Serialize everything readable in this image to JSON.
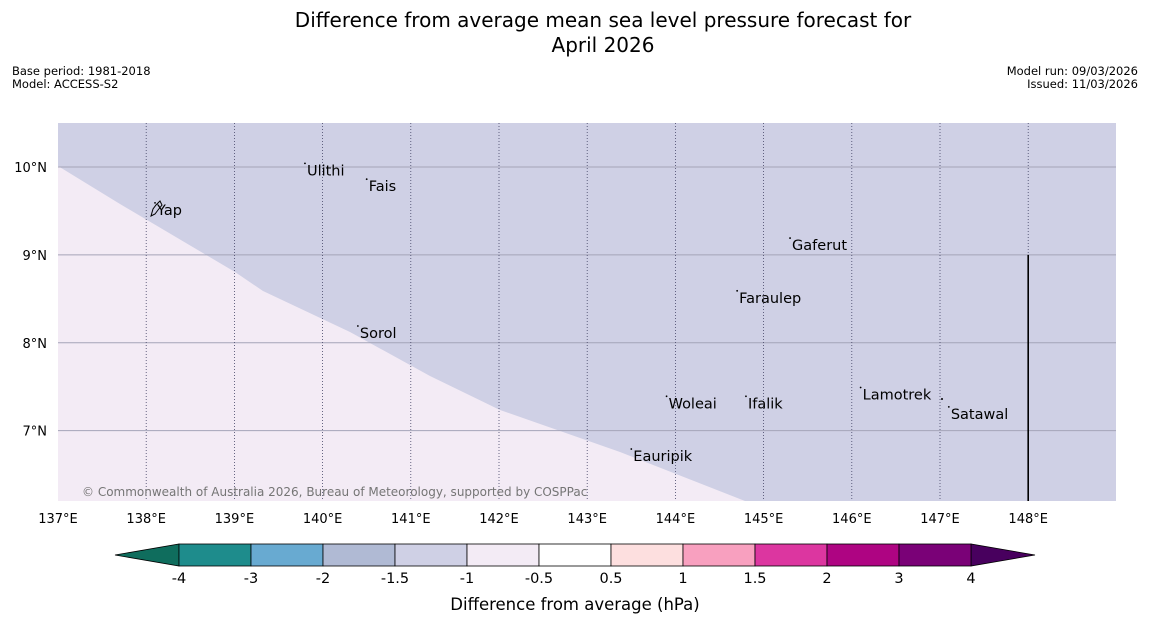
{
  "header": {
    "title_line1": "Difference from average mean sea level pressure forecast for",
    "title_line2": "April 2026",
    "base_period": "Base period: 1981-2018",
    "model": "Model: ACCESS-S2",
    "model_run": "Model run: 09/03/2026",
    "issued": "Issued: 11/03/2026"
  },
  "map": {
    "lon_range": [
      137,
      149
    ],
    "lat_range": [
      6.2,
      10.5
    ],
    "lon_ticks": [
      "137°E",
      "138°E",
      "139°E",
      "140°E",
      "141°E",
      "142°E",
      "143°E",
      "144°E",
      "145°E",
      "146°E",
      "147°E",
      "148°E"
    ],
    "lat_ticks": [
      "7°N",
      "8°N",
      "9°N",
      "10°N"
    ],
    "copyright": "© Commonwealth of Australia 2026, Bureau of Meteorology, supported by COSPPac",
    "colors": {
      "region_minus1_to_minus15": "#cfd0e5",
      "region_minus05_to_minus1": "#f3ebf5"
    },
    "places": [
      {
        "name": "Ulithi",
        "lon": 139.8,
        "lat": 9.95
      },
      {
        "name": "Fais",
        "lon": 140.5,
        "lat": 9.77
      },
      {
        "name": "Yap",
        "lon": 138.1,
        "lat": 9.5
      },
      {
        "name": "Gaferut",
        "lon": 145.3,
        "lat": 9.1
      },
      {
        "name": "Faraulep",
        "lon": 144.7,
        "lat": 8.5
      },
      {
        "name": "Sorol",
        "lon": 140.4,
        "lat": 8.1
      },
      {
        "name": "Lamotrek",
        "lon": 146.1,
        "lat": 7.4
      },
      {
        "name": "Satawal",
        "lon": 147.1,
        "lat": 7.18
      },
      {
        "name": "Woleai",
        "lon": 143.9,
        "lat": 7.3
      },
      {
        "name": "Ifalik",
        "lon": 144.8,
        "lat": 7.3
      },
      {
        "name": "Eauripik",
        "lon": 143.5,
        "lat": 6.7
      }
    ]
  },
  "colorbar": {
    "colors": [
      "#1e8c8c",
      "#68aad1",
      "#b0bad4",
      "#cfd0e5",
      "#f3ebf5",
      "#ffffff",
      "#fddfdf",
      "#f8a0bf",
      "#dc36a0",
      "#ae0482",
      "#7a0177"
    ],
    "extend_low_color": "#0f6d5d",
    "extend_high_color": "#48005e",
    "tick_labels": [
      "-4",
      "-3",
      "-2",
      "-1.5",
      "-1",
      "-0.5",
      "0.5",
      "1",
      "1.5",
      "2",
      "3",
      "4"
    ],
    "label": "Difference from average (hPa)"
  }
}
